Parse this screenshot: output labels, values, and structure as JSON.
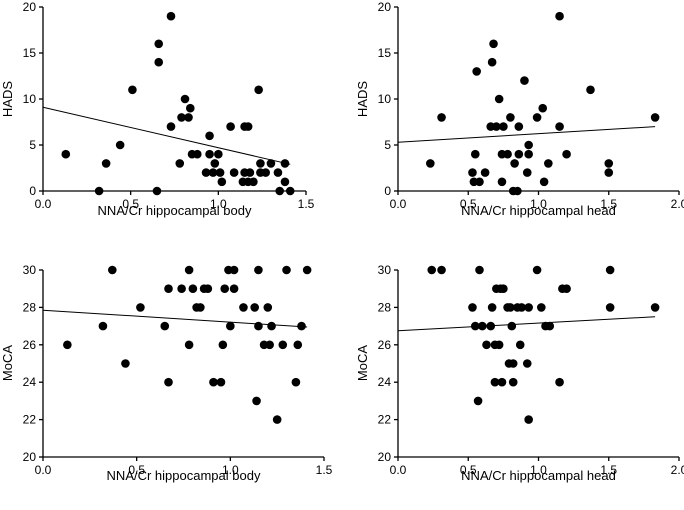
{
  "chart_data": [
    {
      "type": "scatter",
      "xlabel": "NNA/Cr hippocampal body",
      "ylabel": "HADS",
      "xlim": [
        0,
        1.5
      ],
      "ylim": [
        0,
        20
      ],
      "xticks": [
        "0.0",
        "0.5",
        "1.0",
        "1.5"
      ],
      "yticks": [
        "0",
        "5",
        "10",
        "15",
        "20"
      ],
      "xtick_values": [
        0,
        0.5,
        1.0,
        1.5
      ],
      "ytick_values": [
        0,
        5,
        10,
        15,
        20
      ],
      "fit_line": [
        [
          0,
          9.1
        ],
        [
          1.41,
          2.9
        ]
      ],
      "points": [
        [
          0.13,
          4
        ],
        [
          0.32,
          0
        ],
        [
          0.36,
          3
        ],
        [
          0.44,
          5
        ],
        [
          0.51,
          11
        ],
        [
          0.65,
          0
        ],
        [
          0.66,
          14
        ],
        [
          0.66,
          16
        ],
        [
          0.73,
          19
        ],
        [
          0.73,
          7
        ],
        [
          0.78,
          3
        ],
        [
          0.79,
          8
        ],
        [
          0.81,
          10
        ],
        [
          0.83,
          8
        ],
        [
          0.84,
          9
        ],
        [
          0.85,
          4
        ],
        [
          0.88,
          4
        ],
        [
          0.93,
          2
        ],
        [
          0.95,
          4
        ],
        [
          0.95,
          6
        ],
        [
          0.97,
          2
        ],
        [
          0.98,
          3
        ],
        [
          1.0,
          4
        ],
        [
          1.01,
          2
        ],
        [
          1.02,
          1
        ],
        [
          1.07,
          7
        ],
        [
          1.09,
          2
        ],
        [
          1.14,
          1
        ],
        [
          1.15,
          2
        ],
        [
          1.15,
          7
        ],
        [
          1.17,
          7
        ],
        [
          1.17,
          1
        ],
        [
          1.18,
          2
        ],
        [
          1.2,
          1
        ],
        [
          1.23,
          11
        ],
        [
          1.24,
          2
        ],
        [
          1.24,
          3
        ],
        [
          1.27,
          2
        ],
        [
          1.3,
          3
        ],
        [
          1.34,
          2
        ],
        [
          1.35,
          0
        ],
        [
          1.38,
          3
        ],
        [
          1.38,
          1
        ],
        [
          1.41,
          0
        ]
      ]
    },
    {
      "type": "scatter",
      "xlabel": "NNA/Cr hippocampal head",
      "ylabel": "HADS",
      "xlim": [
        0,
        2.0
      ],
      "ylim": [
        0,
        20
      ],
      "xticks": [
        "0.0",
        "0.5",
        "1.0",
        "1.5",
        "2.0"
      ],
      "yticks": [
        "0",
        "5",
        "10",
        "15",
        "20"
      ],
      "xtick_values": [
        0,
        0.5,
        1.0,
        1.5,
        2.0
      ],
      "ytick_values": [
        0,
        5,
        10,
        15,
        20
      ],
      "fit_line": [
        [
          0,
          5.3
        ],
        [
          1.83,
          7.0
        ]
      ],
      "points": [
        [
          0.23,
          3
        ],
        [
          0.31,
          8
        ],
        [
          0.53,
          2
        ],
        [
          0.54,
          1
        ],
        [
          0.55,
          4
        ],
        [
          0.56,
          13
        ],
        [
          0.58,
          1
        ],
        [
          0.62,
          2
        ],
        [
          0.66,
          7
        ],
        [
          0.67,
          14
        ],
        [
          0.68,
          16
        ],
        [
          0.7,
          7
        ],
        [
          0.72,
          10
        ],
        [
          0.74,
          1
        ],
        [
          0.74,
          4
        ],
        [
          0.75,
          7
        ],
        [
          0.78,
          4
        ],
        [
          0.8,
          8
        ],
        [
          0.82,
          0
        ],
        [
          0.83,
          3
        ],
        [
          0.85,
          0
        ],
        [
          0.86,
          7
        ],
        [
          0.86,
          4
        ],
        [
          0.9,
          12
        ],
        [
          0.92,
          2
        ],
        [
          0.93,
          5
        ],
        [
          0.93,
          4
        ],
        [
          0.99,
          8
        ],
        [
          1.03,
          9
        ],
        [
          1.04,
          1
        ],
        [
          1.07,
          3
        ],
        [
          1.15,
          19
        ],
        [
          1.15,
          7
        ],
        [
          1.2,
          4
        ],
        [
          1.37,
          11
        ],
        [
          1.5,
          3
        ],
        [
          1.5,
          2
        ],
        [
          1.83,
          8
        ]
      ]
    },
    {
      "type": "scatter",
      "xlabel": "NNA/Cr hippocampal body",
      "ylabel": "MoCA",
      "xlim": [
        0,
        1.5
      ],
      "ylim": [
        20,
        30
      ],
      "xticks": [
        "0.0",
        "0.5",
        "1.0",
        "1.5"
      ],
      "yticks": [
        "20",
        "22",
        "24",
        "26",
        "28",
        "30"
      ],
      "xtick_values": [
        0,
        0.5,
        1.0,
        1.5
      ],
      "ytick_values": [
        20,
        22,
        24,
        26,
        28,
        30
      ],
      "fit_line": [
        [
          0,
          27.85
        ],
        [
          1.41,
          26.95
        ]
      ],
      "points": [
        [
          0.13,
          26
        ],
        [
          0.32,
          27
        ],
        [
          0.37,
          30
        ],
        [
          0.44,
          25
        ],
        [
          0.52,
          28
        ],
        [
          0.65,
          27
        ],
        [
          0.67,
          24
        ],
        [
          0.67,
          29
        ],
        [
          0.74,
          29
        ],
        [
          0.78,
          30
        ],
        [
          0.78,
          26
        ],
        [
          0.8,
          29
        ],
        [
          0.82,
          28
        ],
        [
          0.84,
          28
        ],
        [
          0.86,
          29
        ],
        [
          0.88,
          29
        ],
        [
          0.91,
          24
        ],
        [
          0.95,
          24
        ],
        [
          0.96,
          26
        ],
        [
          0.97,
          29
        ],
        [
          0.99,
          30
        ],
        [
          1.0,
          27
        ],
        [
          1.02,
          30
        ],
        [
          1.02,
          29
        ],
        [
          1.07,
          28
        ],
        [
          1.13,
          28
        ],
        [
          1.14,
          23
        ],
        [
          1.15,
          27
        ],
        [
          1.15,
          30
        ],
        [
          1.18,
          26
        ],
        [
          1.2,
          28
        ],
        [
          1.21,
          26
        ],
        [
          1.22,
          27
        ],
        [
          1.25,
          22
        ],
        [
          1.28,
          26
        ],
        [
          1.3,
          30
        ],
        [
          1.35,
          24
        ],
        [
          1.36,
          26
        ],
        [
          1.38,
          27
        ],
        [
          1.41,
          30
        ]
      ]
    },
    {
      "type": "scatter",
      "xlabel": "NNA/Cr hippocampal head",
      "ylabel": "MoCA",
      "xlim": [
        0,
        2.0
      ],
      "ylim": [
        20,
        30
      ],
      "xticks": [
        "0.0",
        "0.5",
        "1.0",
        "1.5",
        "2.0"
      ],
      "yticks": [
        "20",
        "22",
        "24",
        "26",
        "28",
        "30"
      ],
      "xtick_values": [
        0,
        0.5,
        1.0,
        1.5,
        2.0
      ],
      "ytick_values": [
        20,
        22,
        24,
        26,
        28,
        30
      ],
      "fit_line": [
        [
          0,
          26.75
        ],
        [
          1.83,
          27.5
        ]
      ],
      "points": [
        [
          0.24,
          30
        ],
        [
          0.31,
          30
        ],
        [
          0.53,
          28
        ],
        [
          0.55,
          27
        ],
        [
          0.57,
          23
        ],
        [
          0.58,
          30
        ],
        [
          0.6,
          27
        ],
        [
          0.63,
          26
        ],
        [
          0.66,
          27
        ],
        [
          0.67,
          28
        ],
        [
          0.69,
          26
        ],
        [
          0.69,
          24
        ],
        [
          0.7,
          29
        ],
        [
          0.72,
          26
        ],
        [
          0.73,
          29
        ],
        [
          0.74,
          24
        ],
        [
          0.75,
          29
        ],
        [
          0.78,
          28
        ],
        [
          0.79,
          25
        ],
        [
          0.8,
          28
        ],
        [
          0.81,
          27
        ],
        [
          0.82,
          25
        ],
        [
          0.82,
          24
        ],
        [
          0.85,
          28
        ],
        [
          0.87,
          26
        ],
        [
          0.88,
          28
        ],
        [
          0.92,
          25
        ],
        [
          0.93,
          22
        ],
        [
          0.93,
          28
        ],
        [
          0.99,
          30
        ],
        [
          1.02,
          28
        ],
        [
          1.05,
          27
        ],
        [
          1.08,
          27
        ],
        [
          1.15,
          24
        ],
        [
          1.17,
          29
        ],
        [
          1.2,
          29
        ],
        [
          1.51,
          30
        ],
        [
          1.51,
          28
        ],
        [
          1.83,
          28
        ]
      ]
    }
  ]
}
